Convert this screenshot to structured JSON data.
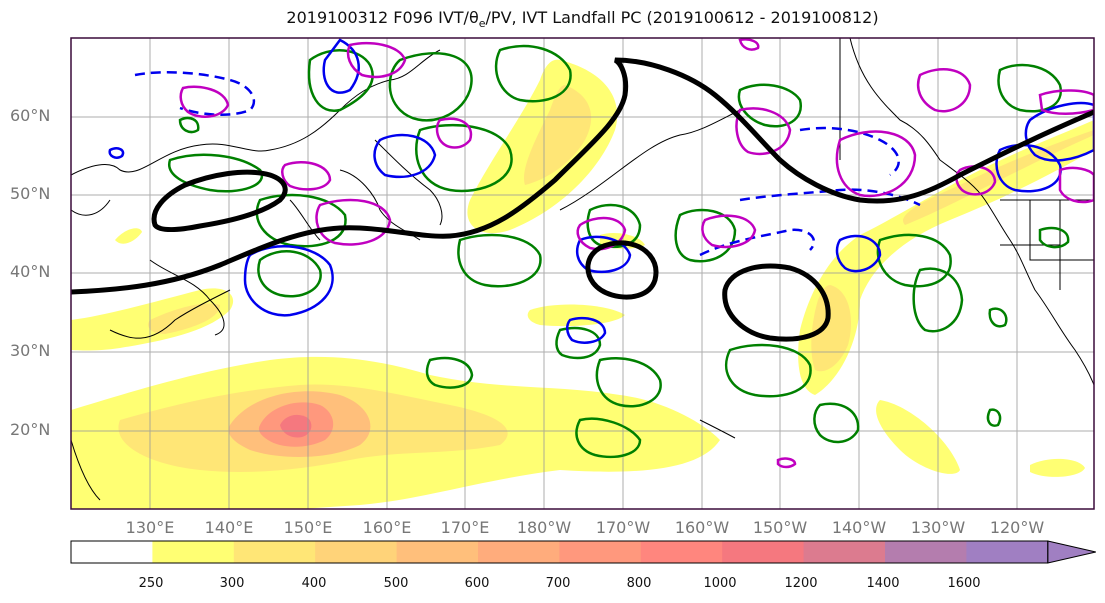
{
  "title": {
    "prefix": "2019100312 F096 IVT/",
    "theta": "θ",
    "theta_sub": "e",
    "suffix": "/PV, IVT Landfall PC (2019100612 - 2019100812)"
  },
  "lat_labels": [
    "60°N",
    "50°N",
    "40°N",
    "30°N",
    "20°N"
  ],
  "lon_labels": [
    "130°E",
    "140°E",
    "150°E",
    "160°E",
    "170°E",
    "180°W",
    "170°W",
    "160°W",
    "150°W",
    "140°W",
    "130°W",
    "120°W"
  ],
  "colorbar": {
    "ticks": [
      "250",
      "300",
      "400",
      "500",
      "600",
      "700",
      "800",
      "1000",
      "1200",
      "1400",
      "1600"
    ],
    "colors": [
      "#ffffff",
      "#ffff73",
      "#ffe676",
      "#ffd379",
      "#ffbf7b",
      "#ffac7c",
      "#ff987d",
      "#ff867e",
      "#f5787f",
      "#dc7b8f",
      "#b47dae",
      "#a07fc2"
    ]
  },
  "colors": {
    "pc_contour": "#000000",
    "pv_contour": "#0000ee",
    "theta_contour": "#008000",
    "ivt_contour": "#c000c0",
    "frame": "#3a0a3a"
  }
}
